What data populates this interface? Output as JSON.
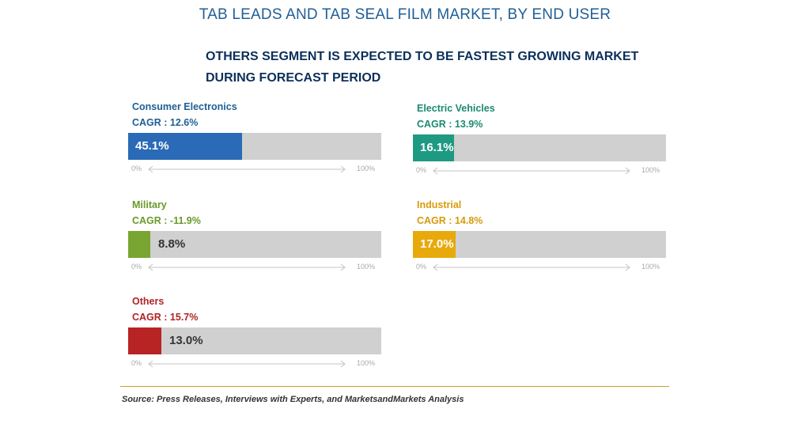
{
  "chart_title": "TAB LEADS AND TAB SEAL FILM MARKET, BY END USER",
  "subtitle": "OTHERS SEGMENT IS EXPECTED TO BE FASTEST GROWING MARKET DURING FORECAST PERIOD",
  "source": "Source: Press Releases, Interviews with Experts, and MarketsandMarkets Analysis",
  "chart_data": {
    "type": "bar",
    "title": "TAB LEADS AND TAB SEAL FILM MARKET, BY END USER",
    "axis_min_label": "0%",
    "axis_max_label": "100%",
    "xlim": [
      0,
      100
    ],
    "segments": [
      {
        "id": "consumer-electronics",
        "name": "Consumer Electronics",
        "cagr": "CAGR : 12.6%",
        "value": 45.1,
        "label": "45.1%",
        "color": "#2a6ab6",
        "text_color": "#1f5f96"
      },
      {
        "id": "electric-vehicles",
        "name": "Electric Vehicles",
        "cagr": "CAGR : 13.9%",
        "value": 16.1,
        "label": "16.1%",
        "color": "#1f9a82",
        "text_color": "#1a8a72"
      },
      {
        "id": "military",
        "name": "Military",
        "cagr": "CAGR : -11.9%",
        "value": 8.8,
        "label": "8.8%",
        "color": "#79a532",
        "text_color": "#6a9a2a"
      },
      {
        "id": "industrial",
        "name": "Industrial",
        "cagr": "CAGR : 14.8%",
        "value": 17.0,
        "label": "17.0%",
        "color": "#e8a90c",
        "text_color": "#d99a0c"
      },
      {
        "id": "others",
        "name": "Others",
        "cagr": "CAGR : 15.7%",
        "value": 13.0,
        "label": "13.0%",
        "color": "#b82323",
        "text_color": "#b02424"
      }
    ]
  }
}
